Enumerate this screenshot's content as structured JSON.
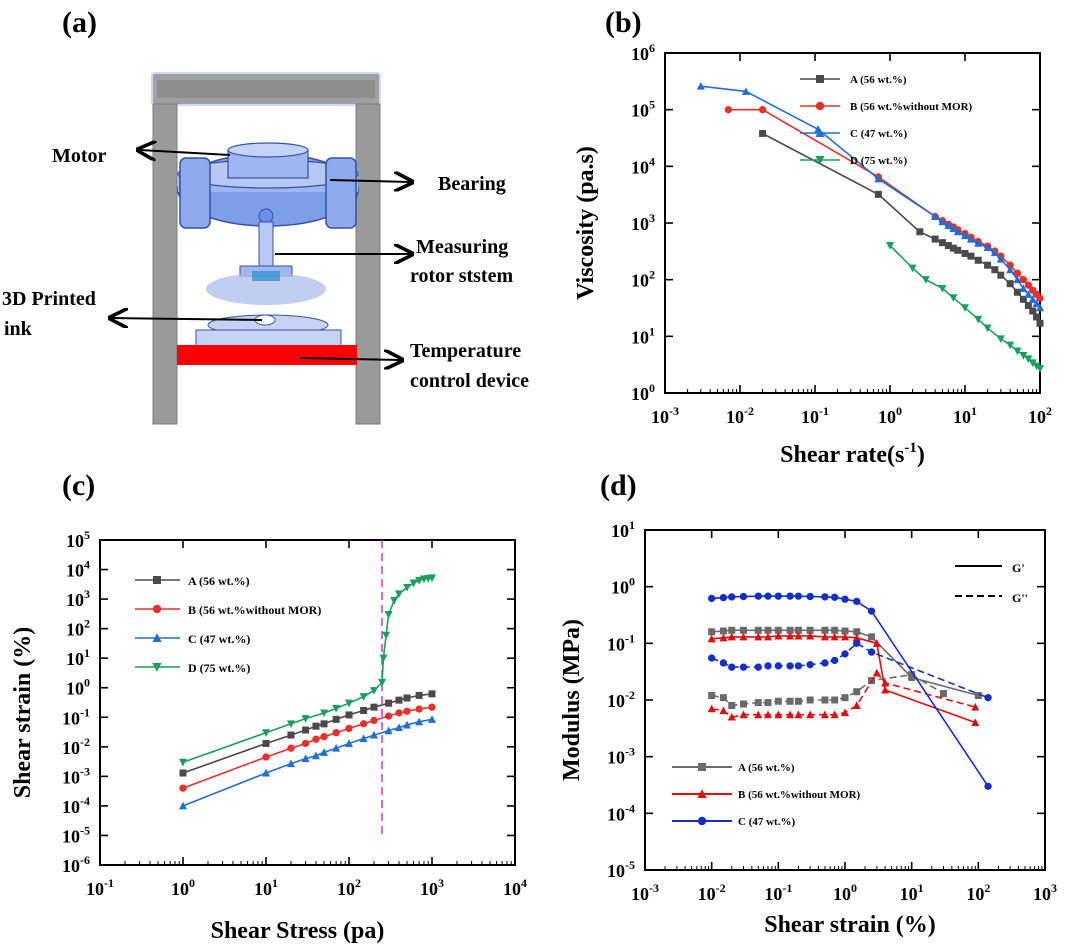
{
  "panels": {
    "a": {
      "label": "(a)",
      "labels": {
        "motor": "Motor",
        "bearing": "Bearing",
        "measuring1": "Measuring",
        "measuring2": "rotor ststem",
        "ink1": "3D Printed",
        "ink2": "ink",
        "temp1": "Temperature",
        "temp2": "control device"
      }
    },
    "b": {
      "label": "(b)"
    },
    "c": {
      "label": "(c)"
    },
    "d": {
      "label": "(d)"
    }
  },
  "colors": {
    "A": "#4a4a4a",
    "B": "#e8302a",
    "C": "#1f6fd6",
    "D": "#19a05a",
    "dA": "#6a6a6a",
    "dB": "#e01010",
    "dC": "#1230c8",
    "vline": "#c23ad8"
  },
  "chart_data": [
    {
      "id": "b",
      "type": "line",
      "xlabel_main": "Shear rate(s",
      "xlabel_sup": "-1",
      "xlabel_end": ")",
      "ylabel": "Viscosity (pa.s)",
      "xscale": "log",
      "yscale": "log",
      "xlim": [
        0.001,
        100
      ],
      "ylim": [
        1,
        1000000
      ],
      "legend_position": "top-right",
      "series": [
        {
          "key": "A",
          "name": "A  (56 wt.%)",
          "marker": "square",
          "x": [
            0.02,
            0.7,
            2.5,
            4,
            5,
            6,
            7,
            8,
            10,
            12,
            15,
            20,
            25,
            30,
            40,
            50,
            60,
            70,
            80,
            90,
            100
          ],
          "y": [
            38000,
            3200,
            700,
            520,
            450,
            400,
            360,
            330,
            290,
            260,
            220,
            180,
            150,
            120,
            85,
            60,
            45,
            35,
            28,
            22,
            17
          ]
        },
        {
          "key": "B",
          "name": "B  (56 wt.%without MOR)",
          "marker": "circle",
          "x": [
            0.007,
            0.02,
            0.7,
            4,
            5,
            6,
            7,
            8,
            10,
            12,
            15,
            20,
            25,
            30,
            40,
            50,
            60,
            70,
            80,
            90,
            100
          ],
          "y": [
            100000,
            100000,
            6500,
            1300,
            1100,
            950,
            850,
            760,
            650,
            560,
            470,
            390,
            320,
            260,
            180,
            130,
            100,
            80,
            65,
            55,
            47
          ]
        },
        {
          "key": "C",
          "name": "C  (47 wt.%)",
          "marker": "triangle-up",
          "x": [
            0.003,
            0.012,
            0.11,
            0.7,
            4,
            5,
            6,
            7,
            8,
            10,
            12,
            15,
            20,
            25,
            30,
            40,
            50,
            60,
            70,
            80,
            90,
            100
          ],
          "y": [
            260000,
            210000,
            45000,
            6000,
            1300,
            1050,
            900,
            800,
            700,
            600,
            520,
            440,
            370,
            300,
            230,
            150,
            100,
            70,
            55,
            45,
            38,
            32
          ]
        },
        {
          "key": "D",
          "name": "D  (75 wt.%)",
          "marker": "triangle-down",
          "x": [
            1,
            2,
            3,
            5,
            7,
            10,
            15,
            20,
            30,
            40,
            50,
            60,
            70,
            80,
            90,
            100
          ],
          "y": [
            400,
            160,
            100,
            70,
            48,
            32,
            20,
            14,
            9,
            7,
            5.5,
            4.6,
            4,
            3.4,
            3,
            2.7
          ]
        }
      ]
    },
    {
      "id": "c",
      "type": "line",
      "xlabel": "Shear Stress (pa)",
      "ylabel": "Shear strain (%)",
      "xscale": "log",
      "yscale": "log",
      "xlim": [
        0.1,
        10000
      ],
      "ylim": [
        1e-06,
        100000
      ],
      "legend_position": "top-left",
      "vline_x": 250,
      "series": [
        {
          "key": "A",
          "name": "A  (56 wt.%)",
          "marker": "square",
          "x": [
            1,
            10,
            20,
            30,
            40,
            50,
            70,
            100,
            150,
            200,
            300,
            400,
            500,
            700,
            1000
          ],
          "y": [
            0.0013,
            0.013,
            0.025,
            0.037,
            0.05,
            0.06,
            0.085,
            0.12,
            0.17,
            0.22,
            0.3,
            0.38,
            0.45,
            0.55,
            0.62
          ]
        },
        {
          "key": "B",
          "name": "B  (56 wt.%without MOR)",
          "marker": "circle",
          "x": [
            1,
            10,
            20,
            30,
            40,
            50,
            70,
            100,
            150,
            200,
            300,
            400,
            500,
            700,
            1000
          ],
          "y": [
            0.0004,
            0.0045,
            0.009,
            0.013,
            0.018,
            0.022,
            0.03,
            0.042,
            0.06,
            0.078,
            0.11,
            0.14,
            0.16,
            0.19,
            0.22
          ]
        },
        {
          "key": "C",
          "name": "C  (47 wt.%)",
          "marker": "triangle-up",
          "x": [
            1,
            10,
            20,
            30,
            40,
            50,
            70,
            100,
            150,
            200,
            300,
            400,
            500,
            700,
            1000
          ],
          "y": [
            0.0001,
            0.0013,
            0.0027,
            0.004,
            0.005,
            0.0065,
            0.009,
            0.013,
            0.019,
            0.025,
            0.035,
            0.045,
            0.055,
            0.07,
            0.085
          ]
        },
        {
          "key": "D",
          "name": "D  (75 wt.%)",
          "marker": "triangle-down",
          "x": [
            1,
            10,
            20,
            30,
            50,
            70,
            100,
            150,
            200,
            250,
            260,
            280,
            300,
            350,
            400,
            500,
            600,
            700,
            800,
            900,
            1000
          ],
          "y": [
            0.003,
            0.03,
            0.06,
            0.09,
            0.14,
            0.2,
            0.3,
            0.5,
            0.8,
            1.5,
            10,
            60,
            300,
            900,
            1500,
            2500,
            3500,
            4300,
            4800,
            5000,
            5200
          ]
        }
      ]
    },
    {
      "id": "d",
      "type": "line",
      "xlabel": "Shear strain (%)",
      "ylabel": "Modulus (MPa)",
      "xscale": "log",
      "yscale": "log",
      "xlim": [
        0.001,
        1000
      ],
      "ylim": [
        1e-05,
        10
      ],
      "legend_style": [
        {
          "label": "G'",
          "dash": "solid"
        },
        {
          "label": "G''",
          "dash": "dashed"
        }
      ],
      "series": [
        {
          "key": "A",
          "name": "A (56 wt.%)",
          "marker": "square",
          "gp_x": [
            0.01,
            0.015,
            0.02,
            0.03,
            0.05,
            0.07,
            0.1,
            0.15,
            0.2,
            0.3,
            0.5,
            0.7,
            1,
            1.5,
            2.5,
            10,
            100
          ],
          "gp_y": [
            0.16,
            0.165,
            0.17,
            0.17,
            0.17,
            0.17,
            0.17,
            0.17,
            0.17,
            0.17,
            0.17,
            0.17,
            0.165,
            0.16,
            0.13,
            0.025,
            0.012
          ],
          "gpp_x": [
            0.01,
            0.015,
            0.02,
            0.03,
            0.05,
            0.07,
            0.1,
            0.15,
            0.2,
            0.3,
            0.5,
            0.7,
            1,
            1.5,
            2.5,
            10,
            30
          ],
          "gpp_y": [
            0.012,
            0.011,
            0.008,
            0.0085,
            0.009,
            0.009,
            0.0095,
            0.0095,
            0.0095,
            0.01,
            0.01,
            0.01,
            0.011,
            0.014,
            0.022,
            0.028,
            0.013
          ]
        },
        {
          "key": "B",
          "name": "B (56 wt.%without MOR)",
          "marker": "triangle-up",
          "gp_x": [
            0.01,
            0.015,
            0.02,
            0.03,
            0.05,
            0.07,
            0.1,
            0.15,
            0.2,
            0.3,
            0.5,
            0.7,
            1,
            1.5,
            3,
            4,
            90
          ],
          "gp_y": [
            0.12,
            0.125,
            0.13,
            0.13,
            0.13,
            0.13,
            0.135,
            0.135,
            0.135,
            0.135,
            0.13,
            0.13,
            0.13,
            0.125,
            0.1,
            0.015,
            0.004
          ],
          "gpp_x": [
            0.01,
            0.015,
            0.02,
            0.03,
            0.05,
            0.07,
            0.1,
            0.15,
            0.2,
            0.3,
            0.5,
            0.7,
            1,
            1.5,
            3,
            4,
            90
          ],
          "gpp_y": [
            0.007,
            0.0065,
            0.005,
            0.0055,
            0.0055,
            0.0055,
            0.0055,
            0.0055,
            0.0055,
            0.0055,
            0.0055,
            0.0055,
            0.006,
            0.008,
            0.03,
            0.02,
            0.0075
          ]
        },
        {
          "key": "C",
          "name": "C (47 wt.%)",
          "marker": "circle",
          "gp_x": [
            0.01,
            0.015,
            0.02,
            0.03,
            0.05,
            0.07,
            0.1,
            0.15,
            0.2,
            0.3,
            0.5,
            0.7,
            1,
            1.5,
            2.5,
            140
          ],
          "gp_y": [
            0.62,
            0.64,
            0.66,
            0.67,
            0.68,
            0.68,
            0.68,
            0.68,
            0.68,
            0.67,
            0.66,
            0.65,
            0.6,
            0.55,
            0.37,
            0.0003
          ],
          "gpp_x": [
            0.01,
            0.015,
            0.02,
            0.03,
            0.05,
            0.07,
            0.1,
            0.15,
            0.2,
            0.3,
            0.5,
            0.7,
            1,
            1.5,
            2.5,
            140
          ],
          "gpp_y": [
            0.055,
            0.045,
            0.038,
            0.038,
            0.038,
            0.04,
            0.04,
            0.04,
            0.04,
            0.042,
            0.045,
            0.05,
            0.065,
            0.1,
            0.07,
            0.011
          ]
        }
      ]
    }
  ]
}
